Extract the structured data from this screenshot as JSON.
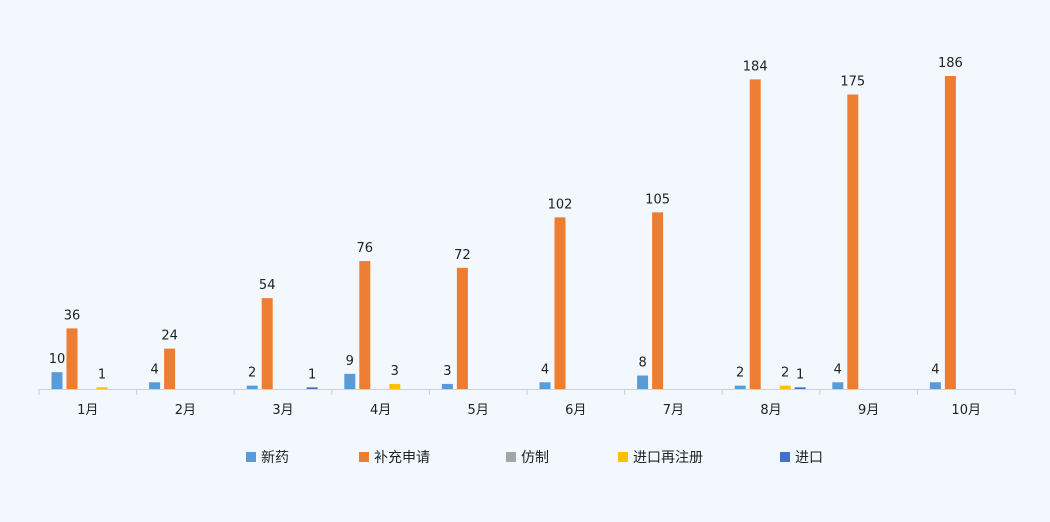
{
  "chart_data": {
    "type": "bar",
    "categories": [
      "1月",
      "2月",
      "3月",
      "4月",
      "5月",
      "6月",
      "7月",
      "8月",
      "9月",
      "10月"
    ],
    "series": [
      {
        "name": "新药",
        "color": "#5b9bd5",
        "values": [
          10,
          4,
          2,
          9,
          3,
          4,
          8,
          2,
          4,
          4
        ]
      },
      {
        "name": "补充申请",
        "color": "#ed7d31",
        "values": [
          36,
          24,
          54,
          76,
          72,
          102,
          105,
          184,
          175,
          186
        ]
      },
      {
        "name": "仿制",
        "color": "#a5a5a5",
        "values": [
          null,
          null,
          null,
          null,
          null,
          null,
          null,
          null,
          null,
          null
        ]
      },
      {
        "name": "进口再注册",
        "color": "#ffc000",
        "values": [
          1,
          null,
          null,
          3,
          null,
          null,
          null,
          2,
          null,
          null
        ]
      },
      {
        "name": "进口",
        "color": "#4472c4",
        "values": [
          null,
          null,
          1,
          null,
          null,
          null,
          null,
          1,
          null,
          null
        ]
      }
    ],
    "ylim": [
      0,
      186
    ],
    "legend_position": "bottom",
    "grid": false,
    "axis_color": "#d0d0d0"
  }
}
